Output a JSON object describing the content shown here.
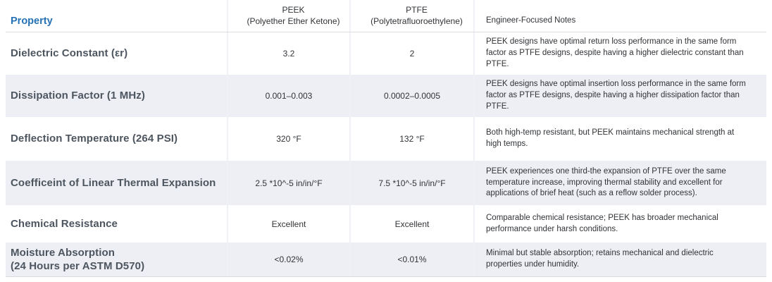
{
  "table": {
    "title_semantic": "PEEK vs PTFE material property comparison",
    "colors": {
      "accent_blue": "#2471b5",
      "row_alt_bg": "#edeff5",
      "header_gray": "#8d939e"
    },
    "headers": {
      "property": "Property",
      "peek": "PEEK\n(Polyether Ether Ketone)",
      "ptfe": "PTFE\n(Polytetrafluoroethylene)",
      "notes": "Engineer-Focused Notes"
    },
    "rows": [
      {
        "property": "Dielectric Constant (εr)",
        "peek": "3.2",
        "ptfe": "2",
        "note": "PEEK designs have optimal return loss performance in the same form factor as PTFE designs, despite having a higher dielectric constant than PTFE."
      },
      {
        "property": "Dissipation Factor (1 MHz)",
        "peek": "0.001–0.003",
        "ptfe": "0.0002–0.0005",
        "note": "PEEK designs have optimal insertion loss performance in the same form factor as PTFE designs, despite having a higher dissipation factor than PTFE."
      },
      {
        "property": "Deflection Temperature (264 PSI)",
        "peek": "320 °F",
        "ptfe": "132 °F",
        "note": "Both high-temp resistant, but PEEK maintains mechanical strength at high temps."
      },
      {
        "property": "Coefficeint of Linear Thermal Expansion",
        "peek": "2.5 *10^-5 in/in/°F",
        "ptfe": "7.5 *10^-5 in/in/°F",
        "note": "PEEK experiences one third-the expansion of PTFE over the same temperature increase, improving thermal stability and excellent for applications of brief heat (such as a reflow solder process)."
      },
      {
        "property": "Chemical Resistance",
        "peek": "Excellent",
        "ptfe": "Excellent",
        "note": "Comparable chemical resistance; PEEK has broader mechanical performance under harsh conditions."
      },
      {
        "property": "Moisture Absorption\n(24 Hours per ASTM D570)",
        "peek": "<0.02%",
        "ptfe": "<0.01%",
        "note": "Minimal but stable absorption; retains mechanical and dielectric properties under humidity."
      }
    ]
  }
}
